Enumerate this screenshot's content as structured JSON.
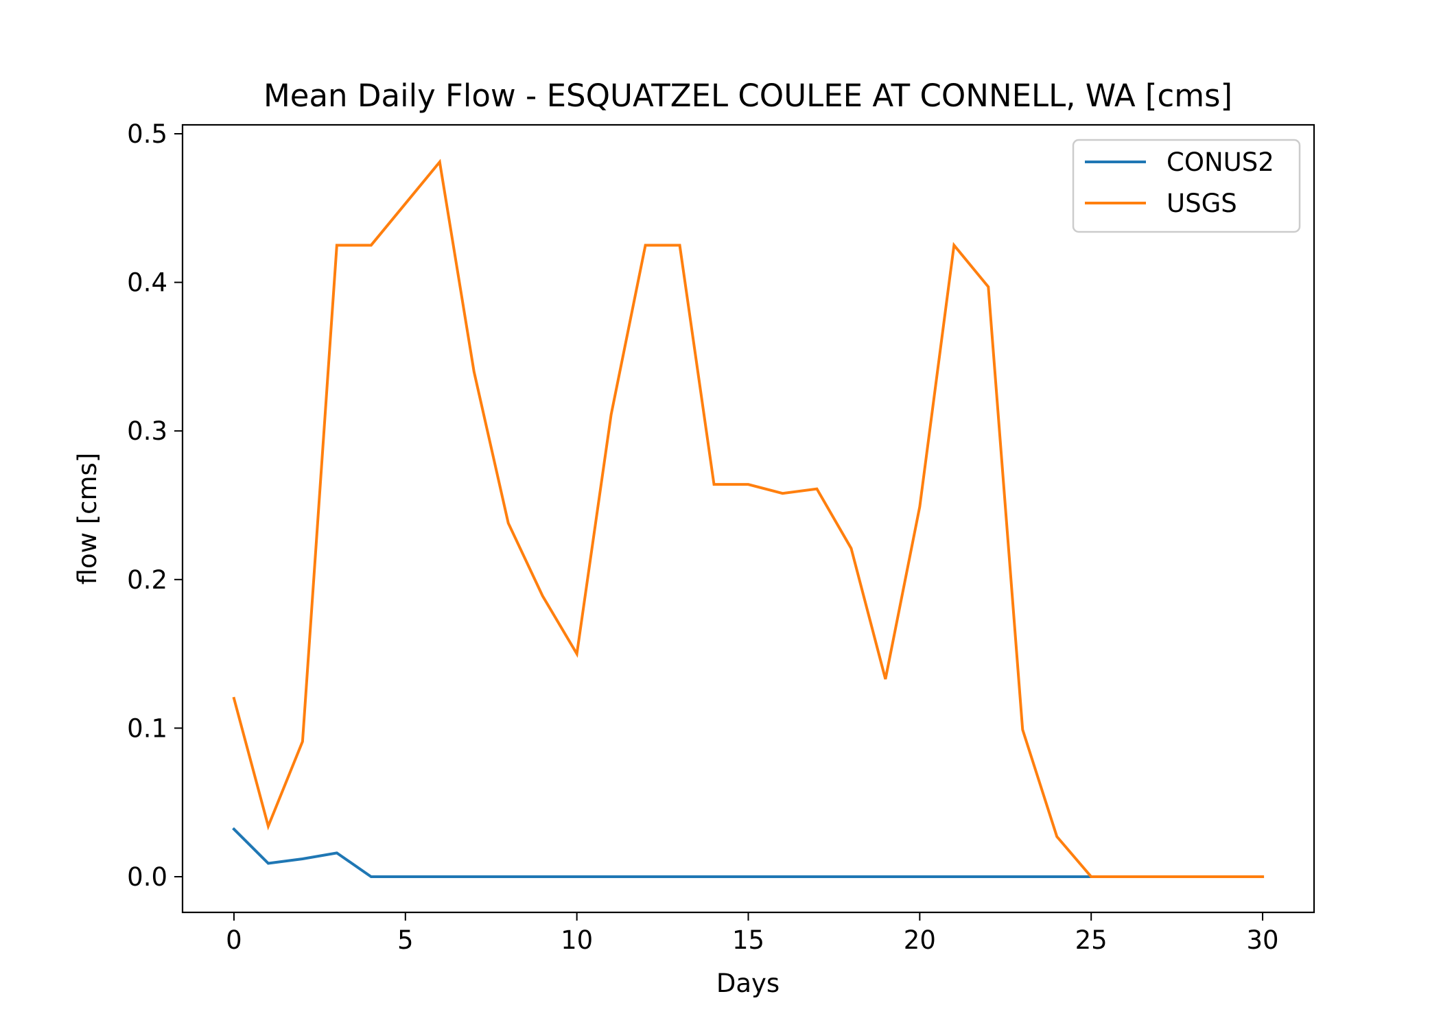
{
  "chart_data": {
    "type": "line",
    "title": "Mean Daily Flow - ESQUATZEL COULEE AT CONNELL, WA [cms]",
    "xlabel": "Days",
    "ylabel": "flow [cms]",
    "xlim": [
      -1.5,
      31.5
    ],
    "ylim": [
      -0.024,
      0.506
    ],
    "xticks": [
      0,
      5,
      10,
      15,
      20,
      25,
      30
    ],
    "yticks": [
      0.0,
      0.1,
      0.2,
      0.3,
      0.4,
      0.5
    ],
    "xtick_labels": [
      "0",
      "5",
      "10",
      "15",
      "20",
      "25",
      "30"
    ],
    "ytick_labels": [
      "0.0",
      "0.1",
      "0.2",
      "0.3",
      "0.4",
      "0.5"
    ],
    "legend_position": "upper right",
    "grid": false,
    "x": [
      0,
      1,
      2,
      3,
      4,
      5,
      6,
      7,
      8,
      9,
      10,
      11,
      12,
      13,
      14,
      15,
      16,
      17,
      18,
      19,
      20,
      21,
      22,
      23,
      24,
      25,
      26,
      27,
      28,
      29,
      30
    ],
    "series": [
      {
        "name": "CONUS2",
        "color": "#1f77b4",
        "values": [
          0.032,
          0.009,
          0.012,
          0.016,
          0.0,
          0.0,
          0.0,
          0.0,
          0.0,
          0.0,
          0.0,
          0.0,
          0.0,
          0.0,
          0.0,
          0.0,
          0.0,
          0.0,
          0.0,
          0.0,
          0.0,
          0.0,
          0.0,
          0.0,
          0.0,
          0.0,
          0.0,
          0.0,
          0.0,
          0.0,
          0.0
        ]
      },
      {
        "name": "USGS",
        "color": "#ff7f0e",
        "values": [
          0.12,
          0.034,
          0.091,
          0.425,
          0.425,
          0.453,
          0.481,
          0.34,
          0.238,
          0.189,
          0.15,
          0.311,
          0.425,
          0.425,
          0.264,
          0.264,
          0.258,
          0.261,
          0.221,
          0.133,
          0.249,
          0.425,
          0.397,
          0.099,
          0.027,
          0.0,
          0.0,
          0.0,
          0.0,
          0.0,
          0.0
        ]
      }
    ]
  }
}
